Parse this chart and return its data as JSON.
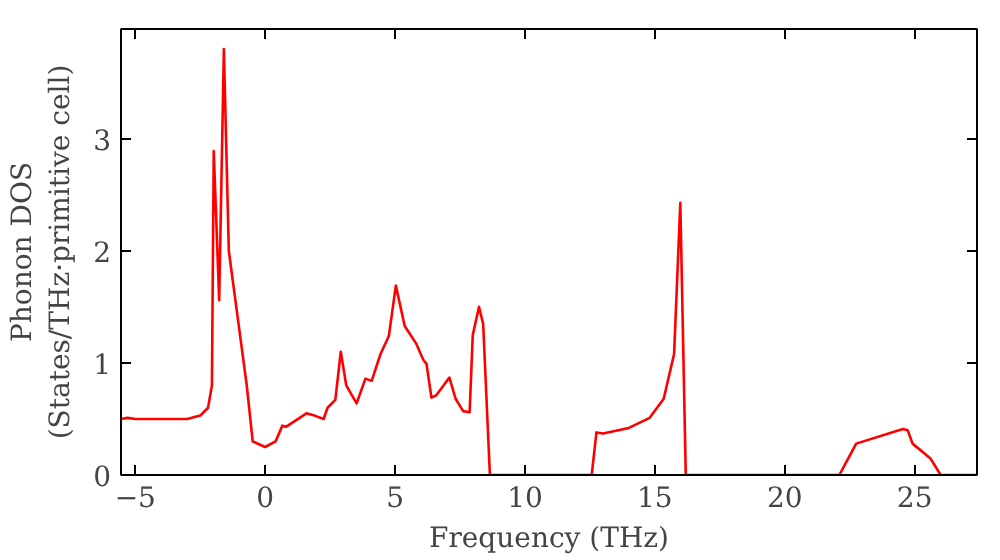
{
  "chart_data": {
    "type": "line",
    "xlabel": "Frequency (THz)",
    "ylabel": "Phonon DOS\n(States/THz·primitive cell)",
    "xlim": [
      -5.55,
      27.4
    ],
    "ylim": [
      0,
      3.98
    ],
    "xticks": [
      {
        "value": -5,
        "label": "−5"
      },
      0,
      5,
      10,
      15,
      20,
      25
    ],
    "yticks": [
      0,
      1,
      2,
      3
    ],
    "grid": false,
    "series": [
      {
        "color": "#ff0000",
        "x": [
          -5.55,
          -5.3,
          -5,
          -4,
          -3,
          -2.5,
          -2.2,
          -2.05,
          -1.98,
          -1.77,
          -1.59,
          -1.4,
          -0.71,
          -0.48,
          0,
          0.4,
          0.66,
          0.8,
          1.59,
          1.9,
          2.25,
          2.4,
          2.7,
          2.91,
          3.12,
          3.52,
          3.86,
          4.1,
          4.44,
          4.76,
          5.03,
          5.37,
          5.82,
          6.08,
          6.21,
          6.4,
          6.58,
          7.09,
          7.33,
          7.62,
          7.87,
          7.99,
          8.23,
          8.39,
          8.65,
          12.57,
          12.75,
          13.0,
          14.0,
          14.8,
          15.34,
          15.74,
          15.98,
          16.19,
          22.1,
          22.75,
          24.55,
          24.73,
          24.92,
          25.6,
          26.0,
          27.4
        ],
        "values": [
          0.5,
          0.51,
          0.5,
          0.5,
          0.5,
          0.53,
          0.6,
          0.8,
          2.89,
          1.56,
          3.8,
          2.0,
          0.8,
          0.3,
          0.25,
          0.3,
          0.44,
          0.43,
          0.55,
          0.53,
          0.5,
          0.6,
          0.67,
          1.1,
          0.8,
          0.64,
          0.86,
          0.84,
          1.08,
          1.24,
          1.69,
          1.33,
          1.17,
          1.03,
          0.99,
          0.69,
          0.71,
          0.87,
          0.68,
          0.57,
          0.56,
          1.25,
          1.5,
          1.35,
          0,
          0,
          0.38,
          0.37,
          0.42,
          0.51,
          0.68,
          1.08,
          2.43,
          0,
          0,
          0.28,
          0.41,
          0.4,
          0.28,
          0.15,
          0,
          0
        ]
      }
    ]
  }
}
